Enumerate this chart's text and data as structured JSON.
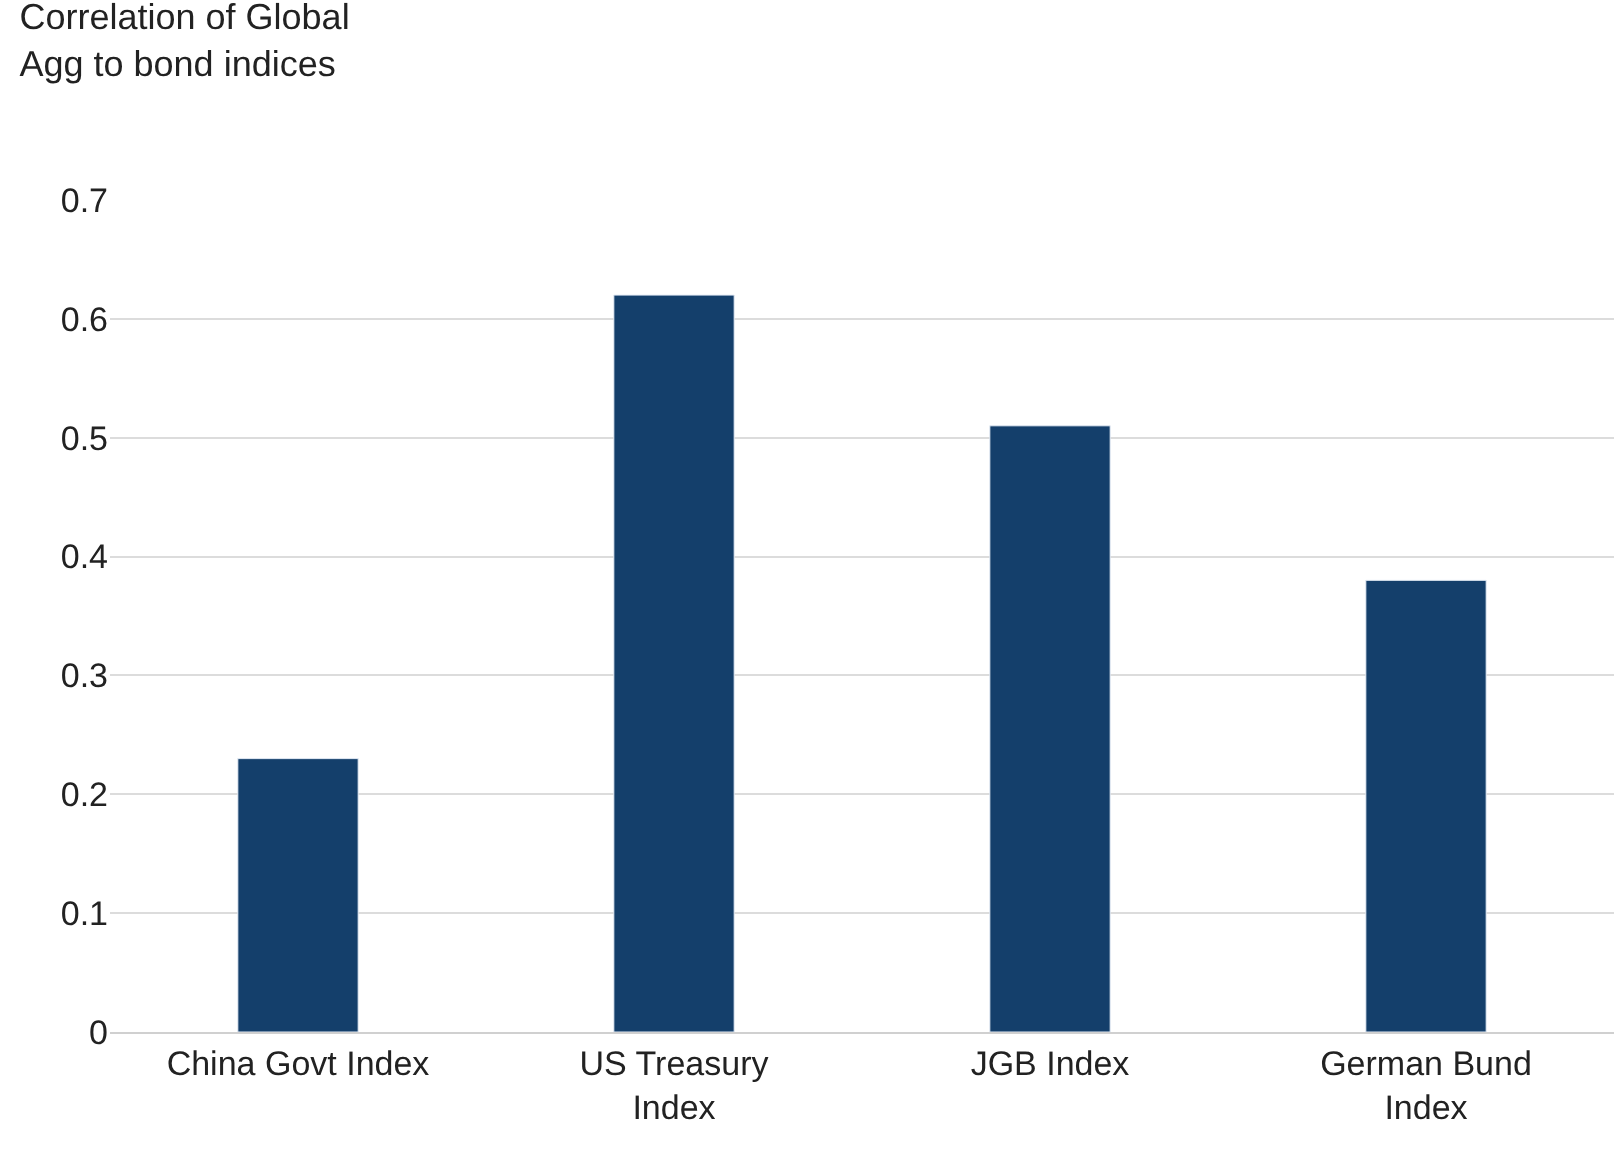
{
  "chart_data": {
    "type": "bar",
    "title": "Correlation of Global\nAgg to bond indices",
    "categories": [
      "China Govt Index",
      "US Treasury Index",
      "JGB Index",
      "German Bund Index"
    ],
    "values": [
      0.23,
      0.62,
      0.51,
      0.38
    ],
    "color": "#143f6b",
    "ylim": [
      0,
      0.7
    ],
    "yticks": [
      0,
      0.1,
      0.2,
      0.3,
      0.4,
      0.5,
      0.6,
      0.7
    ],
    "grid": "y",
    "legend": false
  }
}
